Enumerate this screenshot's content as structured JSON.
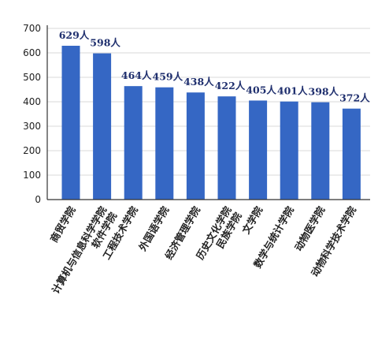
{
  "chart_data": {
    "type": "bar",
    "categories": [
      "商贸学院",
      "计算机与信息科学学院\n软件学院",
      "工程技术学院",
      "外国语学院",
      "经济管理学院",
      "历史文化学院\n民族学院",
      "文学院",
      "数学与统计学院",
      "动物医学院",
      "动物科学技术学院"
    ],
    "values": [
      629,
      598,
      464,
      459,
      438,
      422,
      405,
      401,
      398,
      372
    ],
    "data_labels": [
      "629人",
      "598人",
      "464人",
      "459人",
      "438人",
      "422人",
      "405人",
      "401人",
      "398人",
      "372人"
    ],
    "title": "",
    "xlabel": "",
    "ylabel": "",
    "ylim": [
      0,
      700
    ],
    "yticks": [
      0,
      100,
      200,
      300,
      400,
      500,
      600,
      700
    ],
    "grid": true,
    "bar_color": "#3567c4"
  }
}
